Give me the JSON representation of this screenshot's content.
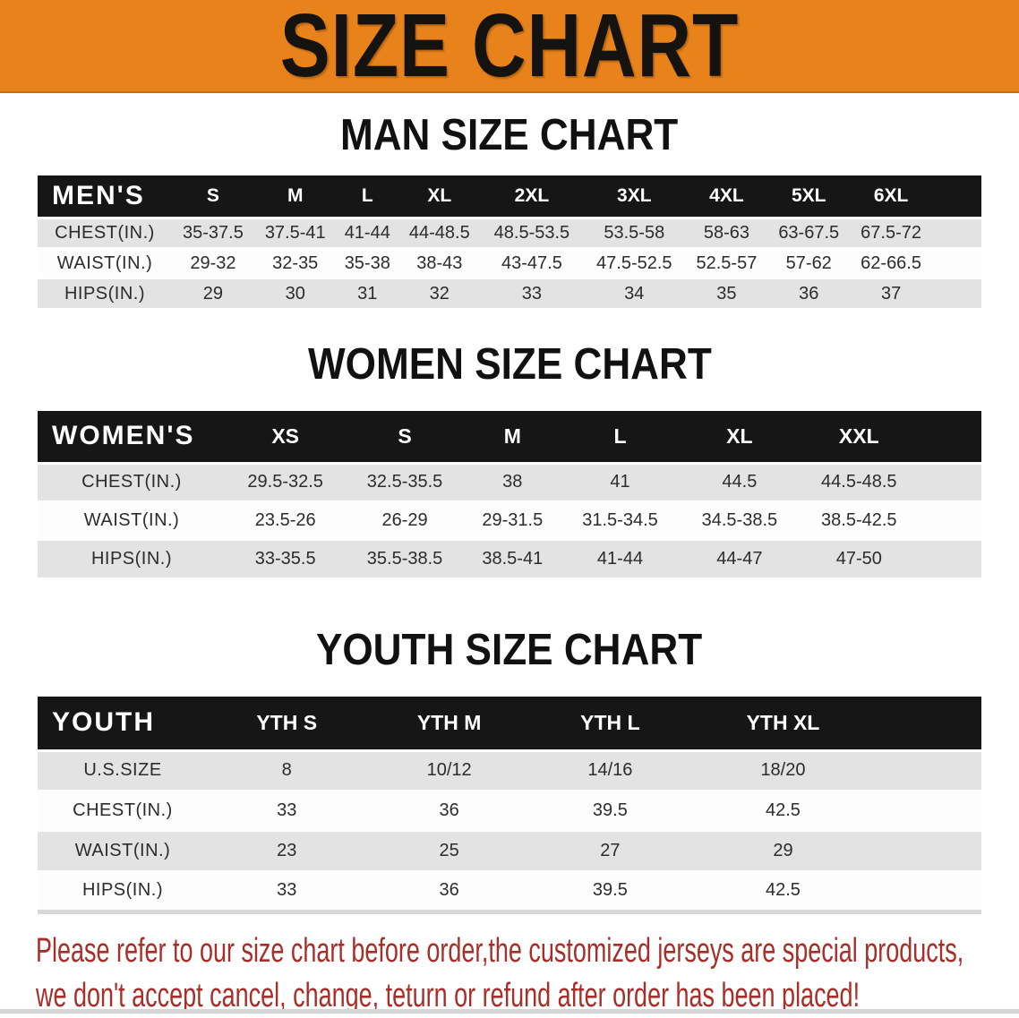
{
  "banner": {
    "title": "SIZE CHART"
  },
  "colors": {
    "banner_bg": "#e8831c",
    "header_bar_bg": "#161616",
    "row_alt_bg": "#e3e3e3",
    "disclaimer_red": "#a82e28"
  },
  "sections": [
    {
      "title": "MAN SIZE CHART",
      "group_label": "MEN'S",
      "columns": [
        "S",
        "M",
        "L",
        "XL",
        "2XL",
        "3XL",
        "4XL",
        "5XL",
        "6XL"
      ],
      "rows": [
        {
          "label": "CHEST(IN.)",
          "values": [
            "35-37.5",
            "37.5-41",
            "41-44",
            "44-48.5",
            "48.5-53.5",
            "53.5-58",
            "58-63",
            "63-67.5",
            "67.5-72"
          ]
        },
        {
          "label": "WAIST(IN.)",
          "values": [
            "29-32",
            "32-35",
            "35-38",
            "38-43",
            "43-47.5",
            "47.5-52.5",
            "52.5-57",
            "57-62",
            "62-66.5"
          ]
        },
        {
          "label": "HIPS(IN.)",
          "values": [
            "29",
            "30",
            "31",
            "32",
            "33",
            "34",
            "35",
            "36",
            "37"
          ]
        }
      ]
    },
    {
      "title": "WOMEN SIZE CHART",
      "group_label": "WOMEN'S",
      "columns": [
        "XS",
        "S",
        "M",
        "L",
        "XL",
        "XXL"
      ],
      "rows": [
        {
          "label": "CHEST(IN.)",
          "values": [
            "29.5-32.5",
            "32.5-35.5",
            "38",
            "41",
            "44.5",
            "44.5-48.5"
          ]
        },
        {
          "label": "WAIST(IN.)",
          "values": [
            "23.5-26",
            "26-29",
            "29-31.5",
            "31.5-34.5",
            "34.5-38.5",
            "38.5-42.5"
          ]
        },
        {
          "label": "HIPS(IN.)",
          "values": [
            "33-35.5",
            "35.5-38.5",
            "38.5-41",
            "41-44",
            "44-47",
            "47-50"
          ]
        }
      ]
    },
    {
      "title": "YOUTH SIZE CHART",
      "group_label": "YOUTH",
      "columns": [
        "YTH S",
        "YTH M",
        "YTH L",
        "YTH XL"
      ],
      "rows": [
        {
          "label": "U.S.SIZE",
          "values": [
            "8",
            "10/12",
            "14/16",
            "18/20"
          ]
        },
        {
          "label": "CHEST(IN.)",
          "values": [
            "33",
            "36",
            "39.5",
            "42.5"
          ]
        },
        {
          "label": "WAIST(IN.)",
          "values": [
            "23",
            "25",
            "27",
            "29"
          ]
        },
        {
          "label": "HIPS(IN.)",
          "values": [
            "33",
            "36",
            "39.5",
            "42.5"
          ]
        }
      ]
    }
  ],
  "disclaimer": {
    "line1": "Please refer to our size chart before order,the customized jerseys are special products,",
    "line2": "we don't accept cancel, change, teturn or refund after order has been placed!"
  }
}
